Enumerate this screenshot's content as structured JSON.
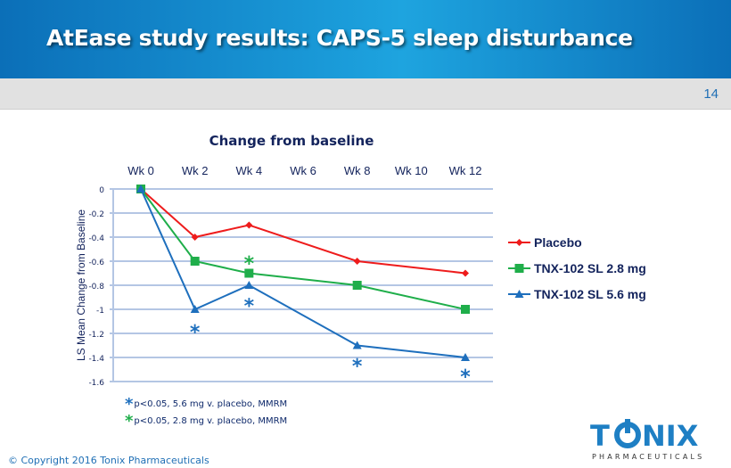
{
  "header": {
    "title": "AtEase study results: CAPS-5 sleep disturbance",
    "page_number": "14"
  },
  "chart_data": {
    "type": "line",
    "title": "Change from baseline",
    "xlabel": "",
    "ylabel": "LS Mean Change from Baseline",
    "x_ticks": [
      "Wk 0",
      "Wk 2",
      "Wk 4",
      "Wk 6",
      "Wk 8",
      "Wk 10",
      "Wk 12"
    ],
    "x_tick_weeks": [
      0,
      2,
      4,
      6,
      8,
      10,
      12
    ],
    "y_ticks": [
      "0",
      "-0.2",
      "-0.4",
      "-0.6",
      "-0.8",
      "-1",
      "-1.2",
      "-1.4",
      "-1.6"
    ],
    "ylim": [
      -1.6,
      0
    ],
    "xlim": [
      -1,
      13
    ],
    "grid": true,
    "legend_position": "right",
    "series": [
      {
        "name": "Placebo",
        "color": "#ee1c1c",
        "marker": "diamond",
        "x": [
          0,
          2,
          4,
          8,
          12
        ],
        "values": [
          0,
          -0.4,
          -0.3,
          -0.6,
          -0.7
        ]
      },
      {
        "name": "TNX-102 SL 2.8 mg",
        "color": "#1fae4a",
        "marker": "square",
        "x": [
          0,
          2,
          4,
          8,
          12
        ],
        "values": [
          0,
          -0.6,
          -0.7,
          -0.8,
          -1.0
        ]
      },
      {
        "name": "TNX-102 SL 5.6 mg",
        "color": "#1e6fbd",
        "marker": "triangle",
        "x": [
          0,
          2,
          4,
          8,
          12
        ],
        "values": [
          0,
          -1.0,
          -0.8,
          -1.3,
          -1.4
        ]
      }
    ],
    "annotations": [
      {
        "text": "*",
        "week": 2,
        "value": -1.17,
        "color": "#1e6fbd",
        "meaning": "p<0.05, 5.6 mg v. placebo"
      },
      {
        "text": "*",
        "week": 4,
        "value": -0.95,
        "color": "#1e6fbd",
        "meaning": "p<0.05, 5.6 mg v. placebo"
      },
      {
        "text": "*",
        "week": 4,
        "value": -0.6,
        "color": "#1fae4a",
        "meaning": "p<0.05, 2.8 mg v. placebo"
      },
      {
        "text": "*",
        "week": 8,
        "value": -1.45,
        "color": "#1e6fbd",
        "meaning": "p<0.05, 5.6 mg v. placebo"
      },
      {
        "text": "*",
        "week": 12,
        "value": -1.54,
        "color": "#1e6fbd",
        "meaning": "p<0.05, 5.6 mg v. placebo"
      }
    ]
  },
  "footnotes": [
    {
      "star": "*",
      "color": "#1e6fbd",
      "text": "p<0.05, 5.6 mg v. placebo, MMRM"
    },
    {
      "star": "*",
      "color": "#1fae4a",
      "text": "p<0.05, 2.8 mg v. placebo, MMRM"
    }
  ],
  "footer": {
    "copyright": "© Copyright 2016 Tonix Pharmaceuticals"
  },
  "logo": {
    "name": "TONIX",
    "subtitle": "PHARMACEUTICALS",
    "color": "#1e7fc4"
  }
}
